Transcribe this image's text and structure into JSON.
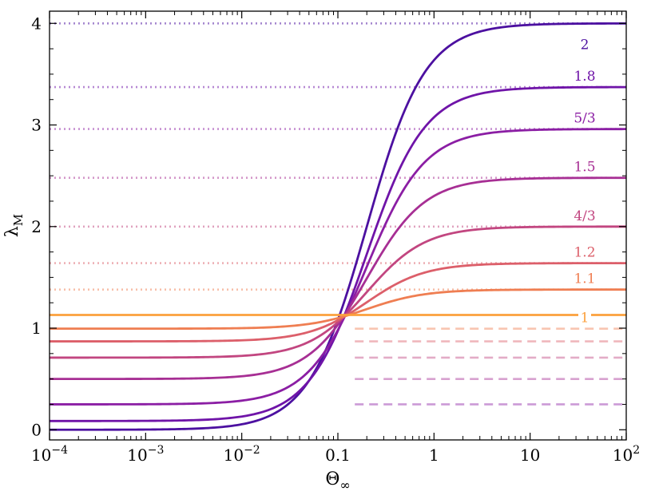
{
  "chart_data": {
    "type": "line",
    "xscale": "log",
    "xlim": [
      0.0001,
      100
    ],
    "ylim": [
      -0.1,
      4.12
    ],
    "xlabel": "Θ∞",
    "ylabel": "λM",
    "grid": false,
    "x_ticks": [
      {
        "value": 0.0001,
        "base": "10",
        "exp": "−4"
      },
      {
        "value": 0.001,
        "base": "10",
        "exp": "−3"
      },
      {
        "value": 0.01,
        "base": "10",
        "exp": "−2"
      },
      {
        "value": 0.1,
        "base": "0.1",
        "exp": ""
      },
      {
        "value": 1,
        "base": "1",
        "exp": ""
      },
      {
        "value": 10,
        "base": "10",
        "exp": ""
      },
      {
        "value": 100,
        "base": "10",
        "exp": "2"
      }
    ],
    "y_ticks": [
      {
        "value": 0,
        "label": "0"
      },
      {
        "value": 1,
        "label": "1"
      },
      {
        "value": 2,
        "label": "2"
      },
      {
        "value": 3,
        "label": "3"
      },
      {
        "value": 4,
        "label": "4"
      }
    ],
    "series": [
      {
        "label": "2",
        "color": "#4c10a0",
        "low": 0.0,
        "high": 4.0,
        "low_style": "none",
        "high_style": "dotted"
      },
      {
        "label": "1.8",
        "color": "#6f14a8",
        "low": 0.086,
        "high": 3.373,
        "low_style": "none",
        "high_style": "dotted"
      },
      {
        "label": "5/3",
        "color": "#8b1ea4",
        "low": 0.25,
        "high": 2.96,
        "low_style": "dashed",
        "high_style": "dotted"
      },
      {
        "label": "1.5",
        "color": "#a72f94",
        "low": 0.5,
        "high": 2.48,
        "low_style": "dashed",
        "high_style": "dotted"
      },
      {
        "label": "4/3",
        "color": "#c24680",
        "low": 0.71,
        "high": 2.0,
        "low_style": "dashed",
        "high_style": "dotted"
      },
      {
        "label": "1.2",
        "color": "#dc5f6a",
        "low": 0.87,
        "high": 1.64,
        "low_style": "dashed",
        "high_style": "dotted"
      },
      {
        "label": "1.1",
        "color": "#ef7e52",
        "low": 0.995,
        "high": 1.38,
        "low_style": "dashed",
        "high_style": "dotted"
      },
      {
        "label": "1",
        "color": "#fba03c",
        "low": 1.13,
        "high": 1.13,
        "low_style": "none",
        "high_style": "none"
      }
    ]
  }
}
